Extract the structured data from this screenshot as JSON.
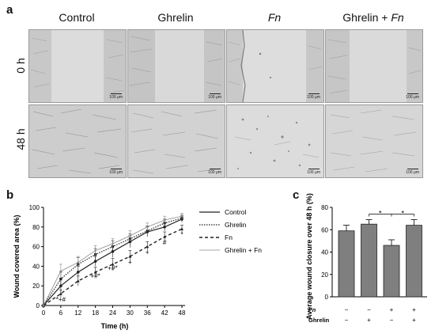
{
  "figure": {
    "panel_a_letter": "a",
    "panel_b_letter": "b",
    "panel_c_letter": "c",
    "conditions": [
      "Control",
      "Ghrelin",
      "Fn",
      "Ghrelin + "
    ],
    "fn_italic": "Fn",
    "time_rows": [
      "0 h",
      "48 h"
    ],
    "scale_bar": "100 μm"
  },
  "chart_data": [
    {
      "type": "line",
      "xlabel": "Time (h)",
      "ylabel": "Wound covered area (%)",
      "xlim": [
        0,
        48
      ],
      "ylim": [
        0,
        100
      ],
      "x_ticks": [
        0,
        6,
        12,
        18,
        24,
        30,
        36,
        42,
        48
      ],
      "y_ticks": [
        0,
        20,
        40,
        60,
        80,
        100
      ],
      "legend_position": "top-right",
      "x": [
        0,
        6,
        12,
        18,
        24,
        30,
        36,
        42,
        48
      ],
      "series": [
        {
          "name": "Control",
          "values": [
            0,
            20,
            34,
            45,
            55,
            65,
            75,
            80,
            88
          ],
          "errors": [
            0,
            8,
            6,
            5,
            6,
            6,
            5,
            4,
            3
          ],
          "style": "solid",
          "marker": "circle"
        },
        {
          "name": "Ghrelin",
          "values": [
            0,
            27,
            42,
            52,
            60,
            68,
            76,
            84,
            89
          ],
          "errors": [
            0,
            7,
            7,
            6,
            6,
            5,
            5,
            4,
            3
          ],
          "style": "dotted",
          "marker": "square"
        },
        {
          "name": "Fn",
          "values": [
            0,
            12,
            25,
            34,
            42,
            50,
            60,
            70,
            78
          ],
          "errors": [
            0,
            4,
            5,
            5,
            6,
            6,
            5,
            5,
            4
          ],
          "style": "dashed",
          "marker": "triangle"
        },
        {
          "name": "Ghrelin + Fn",
          "values": [
            0,
            35,
            44,
            56,
            63,
            71,
            80,
            87,
            91
          ],
          "errors": [
            0,
            7,
            6,
            5,
            5,
            5,
            4,
            4,
            3
          ],
          "style": "thin",
          "marker": "small"
        }
      ],
      "annotations": [
        {
          "x": 6,
          "y": 4,
          "text": "*+#"
        },
        {
          "x": 18,
          "y": 28,
          "text": "+#*"
        },
        {
          "x": 24,
          "y": 36,
          "text": "+#*"
        },
        {
          "x": 30,
          "y": 42,
          "text": "+"
        },
        {
          "x": 36,
          "y": 52,
          "text": "+"
        },
        {
          "x": 42,
          "y": 62,
          "text": "#"
        },
        {
          "x": 48,
          "y": 70,
          "text": "*"
        }
      ]
    },
    {
      "type": "bar",
      "ylabel": "Average wound closure over 48 h (%)",
      "ylim": [
        0,
        80
      ],
      "y_ticks": [
        0,
        20,
        40,
        60,
        80
      ],
      "categories": [
        "Control",
        "Ghrelin",
        "Fn",
        "Ghrelin + Fn"
      ],
      "values": [
        59,
        65,
        46,
        64
      ],
      "errors": [
        5,
        4,
        5,
        5
      ],
      "row_labels": [
        "Fn",
        "Ghrelin"
      ],
      "fn_row": [
        "−",
        "−",
        "+",
        "+"
      ],
      "ghrelin_row": [
        "−",
        "+",
        "−",
        "+"
      ],
      "significance": [
        {
          "from": 1,
          "to": 2,
          "text": "*"
        },
        {
          "from": 2,
          "to": 3,
          "text": "*"
        }
      ]
    }
  ]
}
